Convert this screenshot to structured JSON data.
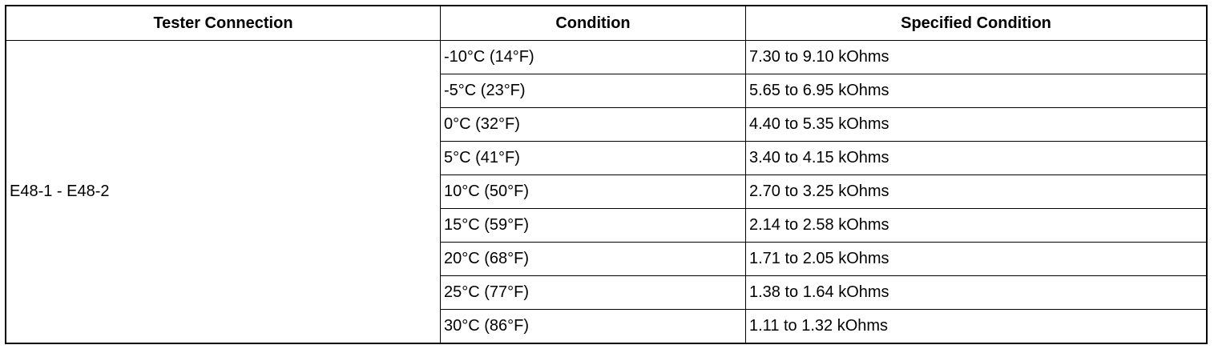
{
  "table": {
    "header": [
      "Tester Connection",
      "Condition",
      "Specified Condition"
    ],
    "connection": "E48-1 - E48-2",
    "rows": [
      [
        "-10°C (14°F)",
        "7.30 to 9.10 kOhms"
      ],
      [
        "-5°C (23°F)",
        "5.65 to 6.95 kOhms"
      ],
      [
        "0°C (32°F)",
        "4.40 to 5.35 kOhms"
      ],
      [
        "5°C (41°F)",
        "3.40 to 4.15 kOhms"
      ],
      [
        "10°C (50°F)",
        "2.70 to 3.25 kOhms"
      ],
      [
        "15°C (59°F)",
        "2.14 to 2.58 kOhms"
      ],
      [
        "20°C (68°F)",
        "1.71 to 2.05 kOhms"
      ],
      [
        "25°C (77°F)",
        "1.38 to 1.64 kOhms"
      ],
      [
        "30°C (86°F)",
        "1.11 to 1.32 kOhms"
      ]
    ]
  }
}
